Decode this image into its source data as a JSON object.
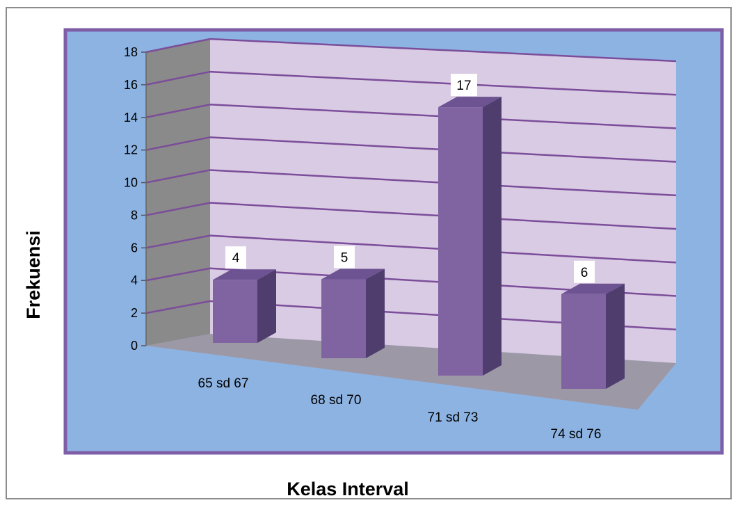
{
  "chart_data": {
    "type": "bar",
    "style": "3d-column",
    "categories": [
      "65 sd 67",
      "68 sd 70",
      "71 sd 73",
      "74 sd 76"
    ],
    "values": [
      4,
      5,
      17,
      6
    ],
    "data_labels": [
      "4",
      "5",
      "17",
      "6"
    ],
    "xlabel": "Kelas Interval",
    "ylabel": "Frekuensi",
    "ylim": [
      0,
      18
    ],
    "yticks": [
      "0",
      "2",
      "4",
      "6",
      "8",
      "10",
      "12",
      "14",
      "16",
      "18"
    ],
    "grid": true,
    "legend": "none",
    "colors": {
      "plot_background": "#8db3e2",
      "plot_border": "#7e5ea6",
      "back_wall": "#d9cbe3",
      "side_wall": "#8a8a8a",
      "floor": "#9d98a6",
      "gridline": "#7b4d9a",
      "bar_front": "#8064a2",
      "bar_side": "#4f3d6e",
      "bar_top": "#6d5391"
    }
  }
}
